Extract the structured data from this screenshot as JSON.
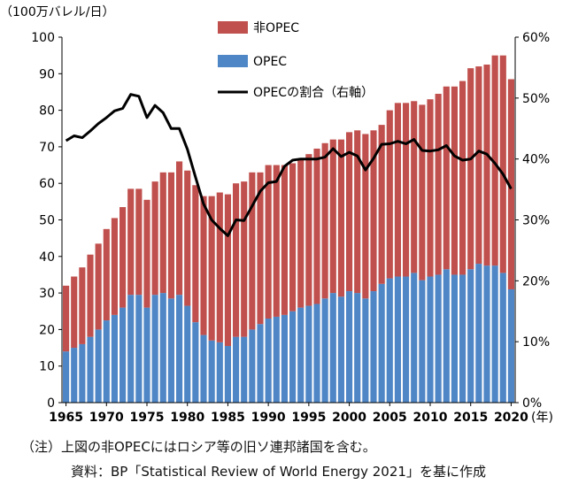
{
  "chart_data": {
    "type": "bar",
    "stacked": true,
    "y_left_unit": "（100万バレル/日）",
    "x_unit": "(年)",
    "ylim": [
      0,
      100
    ],
    "yticks": [
      0,
      10,
      20,
      30,
      40,
      50,
      60,
      70,
      80,
      90,
      100
    ],
    "y2lim": [
      0,
      60
    ],
    "y2ticks": [
      "0%",
      "10%",
      "20%",
      "30%",
      "40%",
      "50%",
      "60%"
    ],
    "xticks": [
      1965,
      1970,
      1975,
      1980,
      1985,
      1990,
      1995,
      2000,
      2005,
      2010,
      2015,
      2020
    ],
    "x": [
      1965,
      1966,
      1967,
      1968,
      1969,
      1970,
      1971,
      1972,
      1973,
      1974,
      1975,
      1976,
      1977,
      1978,
      1979,
      1980,
      1981,
      1982,
      1983,
      1984,
      1985,
      1986,
      1987,
      1988,
      1989,
      1990,
      1991,
      1992,
      1993,
      1994,
      1995,
      1996,
      1997,
      1998,
      1999,
      2000,
      2001,
      2002,
      2003,
      2004,
      2005,
      2006,
      2007,
      2008,
      2009,
      2010,
      2011,
      2012,
      2013,
      2014,
      2015,
      2016,
      2017,
      2018,
      2019,
      2020
    ],
    "series": [
      {
        "name": "OPEC",
        "color": "#4f86c6",
        "values": [
          14,
          15,
          16,
          18,
          20,
          22.5,
          24,
          26,
          29.5,
          29.5,
          26,
          29.5,
          30,
          28.5,
          29.5,
          26.5,
          22,
          18.5,
          17,
          16.5,
          15.5,
          18,
          18,
          20,
          21.5,
          23,
          23.5,
          24,
          25,
          26,
          26.5,
          27,
          28.5,
          30,
          29,
          30.5,
          30,
          28.5,
          30.5,
          32.5,
          34,
          34.5,
          34.5,
          35.5,
          33.5,
          34.5,
          35,
          36.5,
          35,
          35,
          36.5,
          38,
          37.5,
          37.5,
          35.5,
          31
        ]
      },
      {
        "name": "非OPEC",
        "color": "#c0504d",
        "values": [
          18,
          19.5,
          21,
          22.5,
          23.5,
          25,
          26.5,
          27.5,
          29,
          29,
          29.5,
          31,
          33,
          34.5,
          36.5,
          37,
          37.5,
          38,
          39.5,
          41,
          41.5,
          42,
          42.5,
          43,
          41.5,
          42,
          41.5,
          41,
          40.5,
          40.5,
          41.5,
          42.5,
          42.5,
          42,
          43,
          43.5,
          44.5,
          45,
          44,
          43.5,
          46,
          47.5,
          47.5,
          47,
          48,
          48.5,
          49.5,
          50,
          51.5,
          53,
          55,
          54,
          55,
          57.5,
          59.5,
          57.5
        ]
      },
      {
        "name": "OPECの割合（右軸）",
        "color": "#000000",
        "axis": "right",
        "values": [
          43,
          43.8,
          43.5,
          44.6,
          45.8,
          46.8,
          47.9,
          48.3,
          50.6,
          50.3,
          46.8,
          48.8,
          47.6,
          45,
          45,
          41.6,
          37,
          32.6,
          30,
          28.6,
          27.4,
          30,
          29.9,
          32.3,
          34.7,
          36.1,
          36.3,
          38.8,
          39.8,
          40,
          40,
          40,
          40.3,
          41.7,
          40.4,
          41.1,
          40.5,
          38.2,
          40.1,
          42.4,
          42.5,
          42.9,
          42.5,
          43.2,
          41.4,
          41.3,
          41.5,
          42.2,
          40.5,
          39.8,
          40,
          41.3,
          40.8,
          39.3,
          37.5,
          35.1
        ]
      }
    ]
  },
  "notes": {
    "line1": "（注）上図の非OPECにはロシア等の旧ソ連邦諸国を含む。",
    "line2": "資料：BP「Statistical Review of World Energy 2021」を基に作成"
  }
}
